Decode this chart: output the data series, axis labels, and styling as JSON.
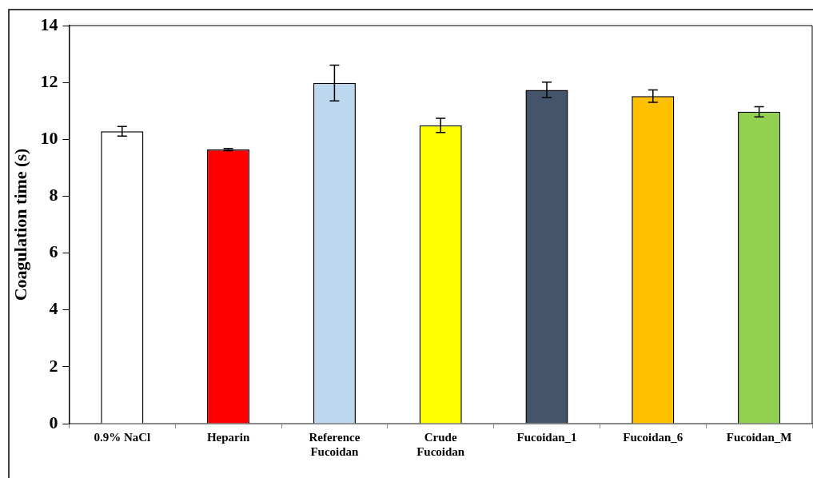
{
  "chart_data": {
    "type": "bar",
    "ylabel": "Coagulation time (s)",
    "categories": [
      "0.9% NaCl",
      "Heparin",
      "Reference Fucoidan",
      "Crude Fucoidan",
      "Fucoidan_1",
      "Fucoidan_6",
      "Fucoidan_M"
    ],
    "values": [
      10.28,
      9.64,
      11.98,
      10.49,
      11.74,
      11.52,
      10.97
    ],
    "errors": [
      0.17,
      0.04,
      0.63,
      0.25,
      0.27,
      0.22,
      0.18
    ],
    "colors": [
      "#ffffff",
      "#ff0000",
      "#bdd7ee",
      "#ffff00",
      "#44546a",
      "#ffc000",
      "#92d050"
    ],
    "ylim": [
      0,
      14
    ],
    "yticks": [
      0,
      2,
      4,
      6,
      8,
      10,
      12,
      14
    ],
    "grid": false
  }
}
